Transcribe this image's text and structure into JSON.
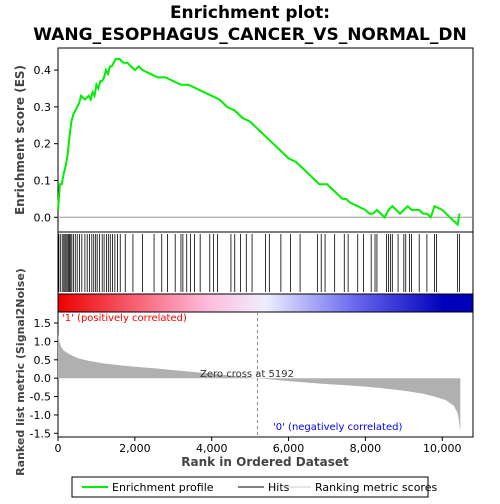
{
  "title_line1": "Enrichment plot:",
  "title_line2": "WANG_ESOPHAGUS_CANCER_VS_NORMAL_DN",
  "colors": {
    "es_line": "#00ee00",
    "hits": "#000000",
    "metric_fill": "#b0b0b0",
    "positive_label": "#ff0000",
    "negative_label": "#0000ff",
    "zero_line": "#888888",
    "gradient": [
      "#ee0000",
      "#ffbbdd",
      "#eeeeff",
      "#6666ee",
      "#0000bb"
    ]
  },
  "chart_data": [
    {
      "type": "line",
      "name": "enrichment-profile",
      "ylabel": "Enrichment score (ES)",
      "ylim": [
        -0.04,
        0.46
      ],
      "yticks": [
        0.0,
        0.1,
        0.2,
        0.3,
        0.4
      ],
      "ytick_labels": [
        "0.0",
        "0.1",
        "0.2",
        "0.3",
        "0.4"
      ],
      "xlim": [
        0,
        10800
      ],
      "grid": false,
      "points": [
        [
          0,
          0.02
        ],
        [
          50,
          0.09
        ],
        [
          100,
          0.09
        ],
        [
          150,
          0.12
        ],
        [
          200,
          0.14
        ],
        [
          250,
          0.17
        ],
        [
          300,
          0.22
        ],
        [
          350,
          0.26
        ],
        [
          400,
          0.28
        ],
        [
          450,
          0.29
        ],
        [
          500,
          0.3
        ],
        [
          550,
          0.31
        ],
        [
          600,
          0.33
        ],
        [
          700,
          0.32
        ],
        [
          800,
          0.33
        ],
        [
          850,
          0.32
        ],
        [
          900,
          0.34
        ],
        [
          950,
          0.33
        ],
        [
          1000,
          0.36
        ],
        [
          1050,
          0.35
        ],
        [
          1100,
          0.37
        ],
        [
          1150,
          0.37
        ],
        [
          1200,
          0.38
        ],
        [
          1250,
          0.4
        ],
        [
          1300,
          0.39
        ],
        [
          1350,
          0.41
        ],
        [
          1400,
          0.41
        ],
        [
          1450,
          0.42
        ],
        [
          1500,
          0.43
        ],
        [
          1600,
          0.43
        ],
        [
          1700,
          0.42
        ],
        [
          1800,
          0.42
        ],
        [
          1900,
          0.41
        ],
        [
          2000,
          0.4
        ],
        [
          2100,
          0.41
        ],
        [
          2200,
          0.4
        ],
        [
          2400,
          0.39
        ],
        [
          2600,
          0.38
        ],
        [
          2700,
          0.38
        ],
        [
          2800,
          0.38
        ],
        [
          3000,
          0.37
        ],
        [
          3200,
          0.36
        ],
        [
          3400,
          0.36
        ],
        [
          3600,
          0.35
        ],
        [
          3800,
          0.34
        ],
        [
          4000,
          0.33
        ],
        [
          4200,
          0.32
        ],
        [
          4400,
          0.3
        ],
        [
          4600,
          0.29
        ],
        [
          4800,
          0.27
        ],
        [
          5000,
          0.26
        ],
        [
          5200,
          0.24
        ],
        [
          5400,
          0.22
        ],
        [
          5600,
          0.2
        ],
        [
          5800,
          0.18
        ],
        [
          6000,
          0.16
        ],
        [
          6200,
          0.15
        ],
        [
          6400,
          0.13
        ],
        [
          6600,
          0.11
        ],
        [
          6800,
          0.09
        ],
        [
          7000,
          0.09
        ],
        [
          7200,
          0.07
        ],
        [
          7400,
          0.05
        ],
        [
          7500,
          0.05
        ],
        [
          7600,
          0.04
        ],
        [
          7800,
          0.03
        ],
        [
          8000,
          0.02
        ],
        [
          8100,
          0.01
        ],
        [
          8200,
          0.01
        ],
        [
          8300,
          0.02
        ],
        [
          8400,
          0.01
        ],
        [
          8500,
          0.0
        ],
        [
          8600,
          0.02
        ],
        [
          8700,
          0.03
        ],
        [
          8800,
          0.02
        ],
        [
          8900,
          0.01
        ],
        [
          9000,
          0.02
        ],
        [
          9100,
          0.03
        ],
        [
          9200,
          0.02
        ],
        [
          9400,
          0.02
        ],
        [
          9500,
          0.01
        ],
        [
          9600,
          0.01
        ],
        [
          9700,
          0.0
        ],
        [
          9800,
          0.03
        ],
        [
          10000,
          0.02
        ],
        [
          10200,
          0.0
        ],
        [
          10400,
          -0.02
        ],
        [
          10450,
          0.01
        ]
      ]
    },
    {
      "type": "scatter",
      "name": "hits",
      "x": [
        20,
        60,
        110,
        150,
        180,
        210,
        240,
        270,
        300,
        330,
        360,
        400,
        450,
        500,
        560,
        620,
        700,
        760,
        820,
        880,
        930,
        980,
        1020,
        1080,
        1150,
        1200,
        1260,
        1310,
        1360,
        1420,
        1480,
        1550,
        1620,
        1750,
        1950,
        2200,
        2500,
        2700,
        2850,
        3050,
        3200,
        3250,
        3350,
        3450,
        3550,
        3700,
        3950,
        4050,
        4150,
        4500,
        4600,
        4750,
        4900,
        5050,
        5400,
        5500,
        5800,
        6050,
        6300,
        6750,
        6850,
        6950,
        7200,
        7450,
        7550,
        7800,
        7950,
        8150,
        8250,
        8300,
        8550,
        8600,
        8650,
        8700,
        8850,
        9000,
        9050,
        9150,
        9200,
        9400,
        9600,
        9800,
        9850,
        10400,
        10450
      ]
    },
    {
      "type": "area",
      "name": "ranked-list-metric",
      "ylabel": "Ranked list metric (Signal2Noise)",
      "xlabel": "Rank in Ordered Dataset",
      "ylim": [
        -1.6,
        1.8
      ],
      "yticks": [
        -1.5,
        -1.0,
        -0.5,
        0.0,
        0.5,
        1.0,
        1.5
      ],
      "ytick_labels": [
        "-1.5",
        "-1.0",
        "-0.5",
        "0.0",
        "0.5",
        "1.0",
        "1.5"
      ],
      "xlim": [
        0,
        10800
      ],
      "xticks": [
        0,
        2000,
        4000,
        6000,
        8000,
        10000
      ],
      "xtick_labels": [
        "0",
        "2,000",
        "4,000",
        "6,000",
        "8,000",
        "10,000"
      ],
      "points": [
        [
          0,
          1.2
        ],
        [
          30,
          1.0
        ],
        [
          80,
          0.85
        ],
        [
          150,
          0.75
        ],
        [
          300,
          0.65
        ],
        [
          500,
          0.55
        ],
        [
          800,
          0.47
        ],
        [
          1200,
          0.4
        ],
        [
          1600,
          0.35
        ],
        [
          2000,
          0.31
        ],
        [
          2500,
          0.27
        ],
        [
          3000,
          0.22
        ],
        [
          3500,
          0.17
        ],
        [
          4000,
          0.12
        ],
        [
          4500,
          0.07
        ],
        [
          5000,
          0.02
        ],
        [
          5192,
          0.0
        ],
        [
          5600,
          -0.04
        ],
        [
          6000,
          -0.08
        ],
        [
          6500,
          -0.12
        ],
        [
          7000,
          -0.16
        ],
        [
          7500,
          -0.19
        ],
        [
          8000,
          -0.23
        ],
        [
          8500,
          -0.28
        ],
        [
          9000,
          -0.34
        ],
        [
          9500,
          -0.42
        ],
        [
          9800,
          -0.5
        ],
        [
          10100,
          -0.6
        ],
        [
          10300,
          -0.75
        ],
        [
          10400,
          -0.95
        ],
        [
          10440,
          -1.2
        ],
        [
          10460,
          -1.4
        ],
        [
          10470,
          -1.4
        ]
      ]
    }
  ],
  "annotations": {
    "positive": "'1' (positively correlated)",
    "negative": "'0' (negatively correlated)",
    "zero_cross": "Zero cross at 5192",
    "zero_cross_rank": 5192
  },
  "legend": {
    "items": [
      {
        "label": "Enrichment profile",
        "style": "es"
      },
      {
        "label": "Hits",
        "style": "hit"
      },
      {
        "label": "Ranking metric scores",
        "style": "metric"
      }
    ]
  }
}
